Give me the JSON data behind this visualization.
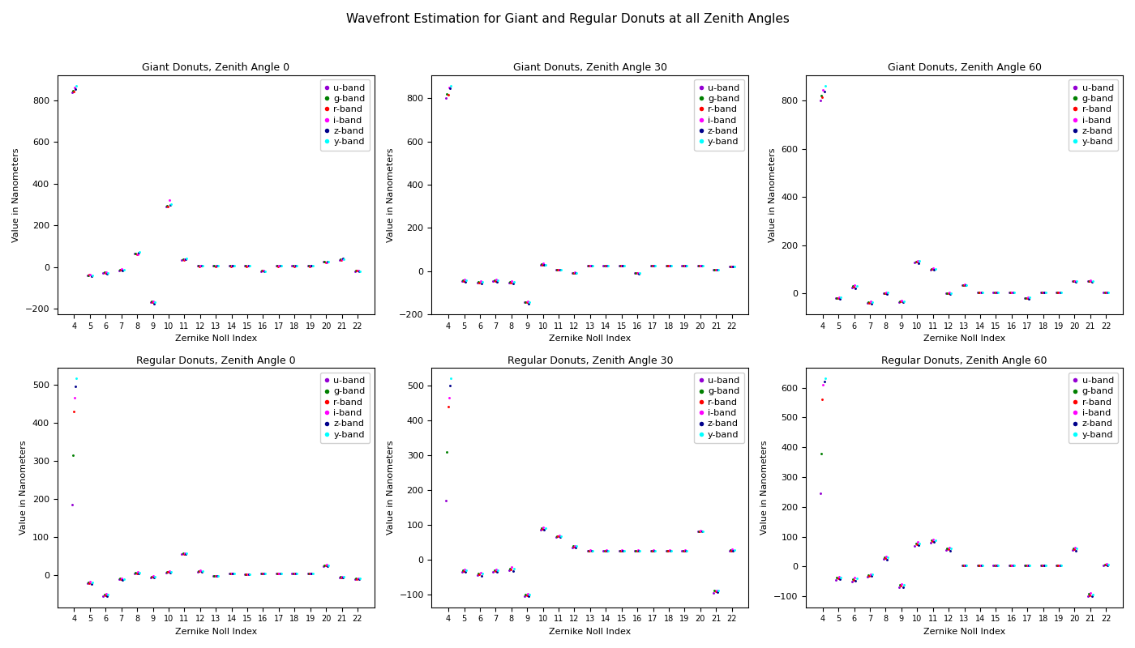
{
  "title": "Wavefront Estimation for Giant and Regular Donuts at all Zenith Angles",
  "bands": [
    "u-band",
    "g-band",
    "r-band",
    "i-band",
    "z-band",
    "y-band"
  ],
  "band_colors": [
    "#9400D3",
    "#008000",
    "#FF0000",
    "#FF00FF",
    "#00008B",
    "#00FFFF"
  ],
  "zernike_indices": [
    4,
    5,
    6,
    7,
    8,
    9,
    10,
    11,
    12,
    13,
    14,
    15,
    16,
    17,
    18,
    19,
    20,
    21,
    22
  ],
  "subplot_titles": [
    "Giant Donuts, Zenith Angle 0",
    "Giant Donuts, Zenith Angle 30",
    "Giant Donuts, Zenith Angle 60",
    "Regular Donuts, Zenith Angle 0",
    "Regular Donuts, Zenith Angle 30",
    "Regular Donuts, Zenith Angle 60"
  ],
  "xlabel": "Zernike Noll Index",
  "ylabel": "Value in Nanometers",
  "data": {
    "giant_z0": {
      "u-band": [
        840,
        -40,
        -30,
        -15,
        65,
        -170,
        290,
        35,
        5,
        5,
        5,
        5,
        -20,
        5,
        5,
        5,
        25,
        35,
        -20
      ],
      "g-band": [
        845,
        -38,
        -25,
        -12,
        65,
        -165,
        295,
        38,
        5,
        5,
        5,
        5,
        -18,
        5,
        5,
        5,
        25,
        37,
        -18
      ],
      "r-band": [
        843,
        -37,
        -27,
        -11,
        63,
        -167,
        292,
        36,
        4,
        4,
        4,
        4,
        -17,
        4,
        4,
        4,
        22,
        36,
        -17
      ],
      "i-band": [
        862,
        -35,
        -23,
        -9,
        60,
        -163,
        320,
        37,
        5,
        5,
        5,
        5,
        -16,
        5,
        5,
        5,
        24,
        37,
        -16
      ],
      "z-band": [
        855,
        -42,
        -32,
        -18,
        68,
        -175,
        298,
        37,
        6,
        6,
        6,
        6,
        -22,
        6,
        6,
        6,
        28,
        40,
        -22
      ],
      "y-band": [
        870,
        -38,
        -28,
        -13,
        72,
        -168,
        302,
        40,
        5,
        5,
        5,
        5,
        -20,
        5,
        5,
        5,
        26,
        38,
        -20
      ]
    },
    "giant_z30": {
      "u-band": [
        800,
        -45,
        -55,
        -45,
        -55,
        -145,
        30,
        5,
        -8,
        25,
        25,
        25,
        -10,
        25,
        25,
        25,
        25,
        5,
        20
      ],
      "g-band": [
        820,
        -42,
        -50,
        -42,
        -50,
        -142,
        32,
        6,
        -7,
        26,
        26,
        26,
        -9,
        26,
        26,
        26,
        26,
        5,
        20
      ],
      "r-band": [
        815,
        -44,
        -52,
        -44,
        -52,
        -144,
        31,
        5,
        -8,
        25,
        25,
        25,
        -10,
        25,
        25,
        25,
        25,
        5,
        20
      ],
      "i-band": [
        852,
        -40,
        -45,
        -40,
        -45,
        -140,
        35,
        7,
        -6,
        27,
        27,
        27,
        -8,
        27,
        27,
        27,
        27,
        6,
        21
      ],
      "z-band": [
        845,
        -48,
        -58,
        -48,
        -58,
        -150,
        28,
        5,
        -9,
        24,
        24,
        24,
        -12,
        24,
        24,
        24,
        24,
        5,
        20
      ],
      "y-band": [
        858,
        -43,
        -50,
        -43,
        -50,
        -145,
        30,
        6,
        -7,
        25,
        25,
        25,
        -10,
        25,
        25,
        25,
        25,
        5,
        20
      ]
    },
    "giant_z60": {
      "u-band": [
        800,
        -20,
        25,
        -40,
        0,
        -35,
        130,
        100,
        0,
        35,
        5,
        5,
        5,
        -20,
        5,
        5,
        50,
        50,
        5
      ],
      "g-band": [
        820,
        -18,
        30,
        -37,
        2,
        -33,
        133,
        102,
        2,
        36,
        5,
        5,
        5,
        -18,
        5,
        5,
        51,
        52,
        5
      ],
      "r-band": [
        815,
        -19,
        28,
        -38,
        1,
        -34,
        132,
        101,
        1,
        35,
        5,
        5,
        5,
        -19,
        5,
        5,
        50,
        51,
        5
      ],
      "i-band": [
        845,
        -15,
        35,
        -33,
        5,
        -30,
        137,
        105,
        3,
        37,
        5,
        5,
        5,
        -16,
        5,
        5,
        53,
        54,
        5
      ],
      "z-band": [
        840,
        -22,
        22,
        -42,
        -2,
        -37,
        127,
        98,
        -1,
        34,
        5,
        5,
        5,
        -22,
        5,
        5,
        48,
        48,
        4
      ],
      "y-band": [
        862,
        -16,
        32,
        -35,
        3,
        -32,
        135,
        103,
        2,
        36,
        5,
        5,
        5,
        -17,
        5,
        5,
        52,
        53,
        5
      ]
    },
    "regular_z0": {
      "u-band": [
        185,
        -20,
        -55,
        -10,
        5,
        -5,
        8,
        55,
        10,
        -2,
        5,
        2,
        5,
        5,
        5,
        5,
        25,
        -5,
        -10
      ],
      "g-band": [
        315,
        -18,
        -50,
        -8,
        8,
        -3,
        10,
        57,
        12,
        -1,
        5,
        2,
        5,
        5,
        5,
        5,
        27,
        -4,
        -8
      ],
      "r-band": [
        430,
        -20,
        -53,
        -10,
        6,
        -4,
        9,
        56,
        11,
        -2,
        5,
        2,
        5,
        5,
        5,
        5,
        26,
        -5,
        -9
      ],
      "i-band": [
        465,
        -17,
        -48,
        -7,
        9,
        -2,
        11,
        58,
        13,
        -1,
        5,
        2,
        5,
        5,
        5,
        5,
        28,
        -4,
        -8
      ],
      "z-band": [
        495,
        -22,
        -55,
        -13,
        5,
        -6,
        8,
        55,
        10,
        -2,
        5,
        2,
        5,
        5,
        5,
        5,
        25,
        -5,
        -10
      ],
      "y-band": [
        515,
        -19,
        -51,
        -10,
        7,
        -3,
        10,
        57,
        12,
        -1,
        5,
        2,
        5,
        5,
        5,
        5,
        27,
        -4,
        -8
      ]
    },
    "regular_z30": {
      "u-band": [
        170,
        -35,
        -45,
        -35,
        -30,
        -105,
        85,
        65,
        35,
        25,
        25,
        25,
        25,
        25,
        25,
        25,
        80,
        -95,
        25
      ],
      "g-band": [
        310,
        -30,
        -40,
        -30,
        -25,
        -100,
        90,
        68,
        38,
        26,
        26,
        26,
        26,
        26,
        26,
        26,
        82,
        -90,
        28
      ],
      "r-band": [
        440,
        -33,
        -43,
        -32,
        -28,
        -102,
        88,
        66,
        36,
        25,
        25,
        25,
        25,
        25,
        25,
        25,
        81,
        -92,
        26
      ],
      "i-band": [
        465,
        -28,
        -38,
        -28,
        -22,
        -98,
        92,
        70,
        40,
        27,
        27,
        27,
        27,
        27,
        27,
        27,
        84,
        -88,
        30
      ],
      "z-band": [
        500,
        -36,
        -46,
        -36,
        -32,
        -106,
        86,
        64,
        34,
        24,
        24,
        24,
        24,
        24,
        24,
        24,
        80,
        -94,
        25
      ],
      "y-band": [
        520,
        -30,
        -40,
        -30,
        -25,
        -100,
        90,
        68,
        38,
        25,
        25,
        25,
        25,
        25,
        25,
        25,
        82,
        -90,
        27
      ]
    },
    "regular_z60": {
      "u-band": [
        245,
        -45,
        -50,
        -35,
        25,
        -70,
        70,
        80,
        55,
        5,
        5,
        5,
        5,
        5,
        5,
        5,
        55,
        -100,
        5
      ],
      "g-band": [
        380,
        -38,
        -42,
        -28,
        32,
        -62,
        78,
        88,
        62,
        5,
        5,
        5,
        5,
        5,
        5,
        5,
        62,
        -92,
        8
      ],
      "r-band": [
        560,
        -40,
        -45,
        -30,
        28,
        -65,
        75,
        85,
        58,
        5,
        5,
        5,
        5,
        5,
        5,
        5,
        58,
        -96,
        6
      ],
      "i-band": [
        610,
        -35,
        -38,
        -25,
        35,
        -58,
        82,
        92,
        65,
        5,
        5,
        5,
        5,
        5,
        5,
        5,
        65,
        -88,
        10
      ],
      "z-band": [
        620,
        -42,
        -48,
        -32,
        22,
        -68,
        72,
        82,
        52,
        5,
        5,
        5,
        5,
        5,
        5,
        5,
        52,
        -98,
        4
      ],
      "y-band": [
        630,
        -36,
        -40,
        -27,
        30,
        -60,
        78,
        88,
        60,
        5,
        5,
        5,
        5,
        5,
        5,
        5,
        60,
        -93,
        7
      ]
    }
  }
}
